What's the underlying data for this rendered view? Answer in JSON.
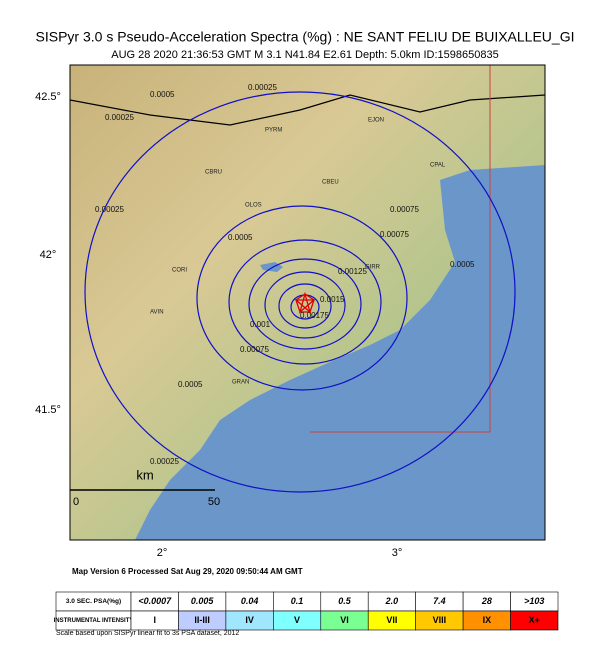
{
  "header": {
    "title": "SISPyr 3.0 s Pseudo-Acceleration Spectra (%g) : NE SANT FELIU DE BUIXALLEU_GI",
    "subtitle": "AUG 28 2020 21:36:53 GMT   M 3.1   N41.84 E2.61   Depth: 5.0km   ID:1598650835"
  },
  "map": {
    "lat_labels": [
      "42.5°",
      "42°",
      "41.5°"
    ],
    "lon_labels": [
      "2°",
      "3°"
    ],
    "contour_labels": [
      "0.00025",
      "0.00025",
      "0.00025",
      "0.00025",
      "0.0005",
      "0.0005",
      "0.0005",
      "0.0005",
      "0.00075",
      "0.00075",
      "0.00075",
      "0.001",
      "0.00125",
      "0.0015",
      "0.00175"
    ],
    "stations": [
      "PYRM",
      "EJON",
      "CPAL",
      "CBRU",
      "CBEU",
      "OLOS",
      "CORI",
      "AVIN",
      "GIRR",
      "GRAN"
    ],
    "scale": {
      "unit": "km",
      "start": "0",
      "end": "50"
    }
  },
  "footer": {
    "version": "Map Version 6 Processed Sat Aug 29, 2020 09:50:44 AM GMT",
    "legend": {
      "row1_header": "3.0 SEC. PSA(%g)",
      "psa": [
        "<0.0007",
        "0.005",
        "0.04",
        "0.1",
        "0.5",
        "2.0",
        "7.4",
        "28",
        ">103"
      ],
      "row2_header": "INSTRUMENTAL INTENSITY",
      "intensity": [
        "I",
        "II-III",
        "IV",
        "V",
        "VI",
        "VII",
        "VIII",
        "IX",
        "X+"
      ]
    },
    "caption": "Scale based upon SISPyr linear fit to 3s PSA dataset, 2012"
  }
}
